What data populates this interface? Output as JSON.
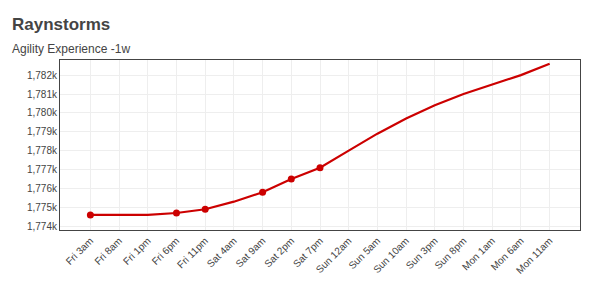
{
  "chart_data": {
    "type": "line",
    "title": "Raynstorms",
    "subtitle": "Agility Experience -1w",
    "categories": [
      "Fri 3am",
      "Fri 8am",
      "Fri 1pm",
      "Fri 6pm",
      "Fri 11pm",
      "Sat 4am",
      "Sat 9am",
      "Sat 2pm",
      "Sat 7pm",
      "Sun 12am",
      "Sun 5am",
      "Sun 10am",
      "Sun 3pm",
      "Sun 8pm",
      "Mon 1am",
      "Mon 6am",
      "Mon 11am"
    ],
    "series": [
      {
        "color": "#cc0000",
        "line_style": "solid",
        "marker": "none",
        "values": [
          1774600,
          1774600,
          1774600,
          1774700,
          1774900,
          1775300,
          1775800,
          1776500,
          1777100,
          1778000,
          1778900,
          1779700,
          1780400,
          1781000,
          1781500,
          1782000,
          1782600
        ]
      },
      {
        "color": "#cc0000",
        "line_style": "none",
        "marker": "circle",
        "values": [
          1774600,
          null,
          null,
          1774700,
          1774900,
          null,
          1775800,
          1776500,
          1777100,
          null,
          null,
          null,
          null,
          null,
          null,
          null,
          null
        ]
      }
    ],
    "ylim": [
      1773800,
      1782800
    ],
    "yticks": [
      {
        "value": 1774000,
        "label": "1,774k"
      },
      {
        "value": 1775000,
        "label": "1,775k"
      },
      {
        "value": 1776000,
        "label": "1,776k"
      },
      {
        "value": 1777000,
        "label": "1,777k"
      },
      {
        "value": 1778000,
        "label": "1,778k"
      },
      {
        "value": 1779000,
        "label": "1,779k"
      },
      {
        "value": 1780000,
        "label": "1,780k"
      },
      {
        "value": 1781000,
        "label": "1,781k"
      },
      {
        "value": 1782000,
        "label": "1,782k"
      }
    ],
    "grid": true
  }
}
